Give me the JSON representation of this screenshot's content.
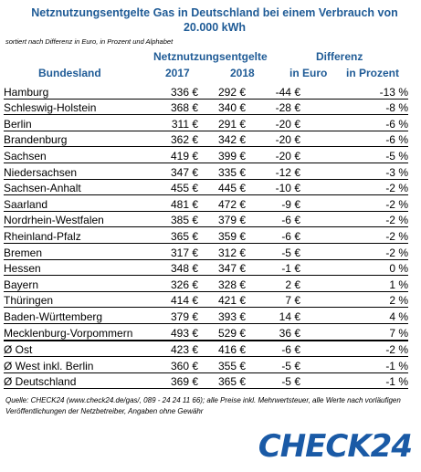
{
  "title": "Netznutzungsentgelte Gas in Deutschland bei einem Verbrauch von 20.000 kWh",
  "subtitle": "sortiert nach Differenz in Euro, in Prozent und Alphabet",
  "headers": {
    "group_fees": "Netznutzungsentgelte",
    "group_diff": "Differenz",
    "bundesland": "Bundesland",
    "y2017": "2017",
    "y2018": "2018",
    "in_euro": "in Euro",
    "in_prozent": "in Prozent"
  },
  "rows": [
    {
      "land": "Hamburg",
      "v2017": "336 €",
      "v2018": "292 €",
      "euro": "-44 €",
      "pct": "-13 %"
    },
    {
      "land": "Schleswig-Holstein",
      "v2017": "368 €",
      "v2018": "340 €",
      "euro": "-28 €",
      "pct": "-8 %"
    },
    {
      "land": "Berlin",
      "v2017": "311 €",
      "v2018": "291 €",
      "euro": "-20 €",
      "pct": "-6 %"
    },
    {
      "land": "Brandenburg",
      "v2017": "362 €",
      "v2018": "342 €",
      "euro": "-20 €",
      "pct": "-6 %"
    },
    {
      "land": "Sachsen",
      "v2017": "419 €",
      "v2018": "399 €",
      "euro": "-20 €",
      "pct": "-5 %"
    },
    {
      "land": "Niedersachsen",
      "v2017": "347 €",
      "v2018": "335 €",
      "euro": "-12 €",
      "pct": "-3 %"
    },
    {
      "land": "Sachsen-Anhalt",
      "v2017": "455 €",
      "v2018": "445 €",
      "euro": "-10 €",
      "pct": "-2 %"
    },
    {
      "land": "Saarland",
      "v2017": "481 €",
      "v2018": "472 €",
      "euro": "-9 €",
      "pct": "-2 %"
    },
    {
      "land": "Nordrhein-Westfalen",
      "v2017": "385 €",
      "v2018": "379 €",
      "euro": "-6 €",
      "pct": "-2 %"
    },
    {
      "land": "Rheinland-Pfalz",
      "v2017": "365 €",
      "v2018": "359 €",
      "euro": "-6 €",
      "pct": "-2 %"
    },
    {
      "land": "Bremen",
      "v2017": "317 €",
      "v2018": "312 €",
      "euro": "-5 €",
      "pct": "-2 %"
    },
    {
      "land": "Hessen",
      "v2017": "348 €",
      "v2018": "347 €",
      "euro": "-1 €",
      "pct": "0 %"
    },
    {
      "land": "Bayern",
      "v2017": "326 €",
      "v2018": "328 €",
      "euro": "2 €",
      "pct": "1 %"
    },
    {
      "land": "Thüringen",
      "v2017": "414 €",
      "v2018": "421 €",
      "euro": "7 €",
      "pct": "2 %"
    },
    {
      "land": "Baden-Württemberg",
      "v2017": "379 €",
      "v2018": "393 €",
      "euro": "14 €",
      "pct": "4 %"
    },
    {
      "land": "Mecklenburg-Vorpommern",
      "v2017": "493 €",
      "v2018": "529 €",
      "euro": "36 €",
      "pct": "7 %"
    }
  ],
  "summary": [
    {
      "land": "Ø Ost",
      "v2017": "423 €",
      "v2018": "416 €",
      "euro": "-6 €",
      "pct": "-2 %"
    },
    {
      "land": "Ø West inkl. Berlin",
      "v2017": "360 €",
      "v2018": "355 €",
      "euro": "-5 €",
      "pct": "-1 %"
    },
    {
      "land": "Ø Deutschland",
      "v2017": "369 €",
      "v2018": "365 €",
      "euro": "-5 €",
      "pct": "-1 %"
    }
  ],
  "footer": "Quelle: CHECK24  (www.check24.de/gas/, 089 - 24 24 11 66); alle Preise inkl. Mehrwertsteuer, alle Werte nach vorläufigen Veröffentlichungen der Netzbetreiber,  Angaben ohne Gewähr",
  "logo": "CHECK24",
  "colors": {
    "header_blue": "#1f5b96",
    "logo_blue": "#1a5aa6"
  }
}
